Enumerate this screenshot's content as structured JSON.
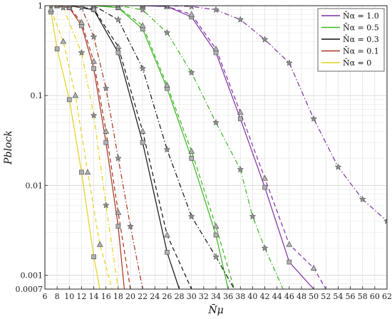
{
  "chart_data": {
    "type": "line",
    "xlabel": "N̄μ",
    "ylabel": "Pblock",
    "xlim": [
      6,
      62
    ],
    "ylim": [
      0.0007,
      1
    ],
    "yscale": "log",
    "grid": true,
    "legend_position": "top-right",
    "x_ticks": [
      6,
      8,
      10,
      12,
      14,
      16,
      18,
      20,
      22,
      24,
      26,
      28,
      30,
      32,
      34,
      36,
      38,
      40,
      42,
      44,
      46,
      48,
      50,
      52,
      54,
      56,
      58,
      60,
      62
    ],
    "x_tick_labels": [
      "6",
      "8",
      "10",
      "12",
      "14",
      "16",
      "18",
      "20",
      "22",
      "24",
      "26",
      "28",
      "30",
      "32",
      "34",
      "36",
      "38",
      "40",
      "42",
      "44",
      "46",
      "48",
      "50",
      "52",
      "54",
      "56",
      "58",
      "60",
      "62"
    ],
    "y_ticks": [
      0.0007,
      0.001,
      0.01,
      0.1,
      1
    ],
    "y_tick_labels": [
      "0.0007",
      "0.001",
      "0.01",
      "0.1",
      "1"
    ],
    "legend": [
      {
        "label": "N̄α = 1.0",
        "color": "#7d2fa3"
      },
      {
        "label": "N̄α = 0.5",
        "color": "#3cb521"
      },
      {
        "label": "N̄α = 0.3",
        "color": "#111111"
      },
      {
        "label": "N̄α = 0.1",
        "color": "#a8321c"
      },
      {
        "label": "N̄α = 0",
        "color": "#e6d21a"
      }
    ],
    "series": [
      {
        "group": "1.0",
        "style": "solid",
        "marker": "square",
        "color": "#7d2fa3",
        "points": [
          [
            22,
            1
          ],
          [
            26,
            0.98
          ],
          [
            30,
            0.75
          ],
          [
            34,
            0.3
          ],
          [
            38,
            0.055
          ],
          [
            42,
            0.0095
          ],
          [
            46,
            0.0014
          ],
          [
            50,
            0.0007
          ]
        ]
      },
      {
        "group": "1.0",
        "style": "dashed",
        "marker": "triangle",
        "color": "#7d2fa3",
        "points": [
          [
            22,
            1
          ],
          [
            26,
            0.98
          ],
          [
            30,
            0.8
          ],
          [
            34,
            0.33
          ],
          [
            38,
            0.065
          ],
          [
            42,
            0.012
          ],
          [
            46,
            0.0022
          ],
          [
            50,
            0.0012
          ],
          [
            52,
            0.0007
          ]
        ]
      },
      {
        "group": "1.0",
        "style": "dashdot",
        "marker": "star",
        "color": "#7d2fa3",
        "points": [
          [
            22,
            1
          ],
          [
            26,
            1
          ],
          [
            30,
            0.98
          ],
          [
            34,
            0.9
          ],
          [
            38,
            0.7
          ],
          [
            42,
            0.42
          ],
          [
            46,
            0.23
          ],
          [
            50,
            0.055
          ],
          [
            54,
            0.016
          ],
          [
            58,
            0.007
          ],
          [
            62,
            0.004
          ]
        ]
      },
      {
        "group": "0.5",
        "style": "solid",
        "marker": "square",
        "color": "#3cb521",
        "points": [
          [
            14,
            1
          ],
          [
            18,
            0.95
          ],
          [
            22,
            0.55
          ],
          [
            26,
            0.12
          ],
          [
            30,
            0.02
          ],
          [
            34,
            0.0028
          ],
          [
            36,
            0.0007
          ]
        ]
      },
      {
        "group": "0.5",
        "style": "dashed",
        "marker": "triangle",
        "color": "#3cb521",
        "points": [
          [
            14,
            1
          ],
          [
            18,
            0.96
          ],
          [
            22,
            0.6
          ],
          [
            26,
            0.13
          ],
          [
            30,
            0.024
          ],
          [
            34,
            0.0035
          ],
          [
            37,
            0.0007
          ]
        ]
      },
      {
        "group": "0.5",
        "style": "dashdot",
        "marker": "star",
        "color": "#3cb521",
        "points": [
          [
            14,
            1
          ],
          [
            18,
            1
          ],
          [
            22,
            0.9
          ],
          [
            26,
            0.5
          ],
          [
            30,
            0.18
          ],
          [
            34,
            0.05
          ],
          [
            38,
            0.015
          ],
          [
            40,
            0.0045
          ],
          [
            42,
            0.002
          ],
          [
            45,
            0.0007
          ]
        ]
      },
      {
        "group": "0.3",
        "style": "solid",
        "marker": "square",
        "color": "#111111",
        "points": [
          [
            10,
            1
          ],
          [
            14,
            0.9
          ],
          [
            18,
            0.3
          ],
          [
            22,
            0.03
          ],
          [
            26,
            0.0018
          ],
          [
            28,
            0.0007
          ]
        ]
      },
      {
        "group": "0.3",
        "style": "dashed",
        "marker": "triangle",
        "color": "#111111",
        "points": [
          [
            10,
            1
          ],
          [
            14,
            0.92
          ],
          [
            18,
            0.35
          ],
          [
            22,
            0.04
          ],
          [
            26,
            0.0028
          ],
          [
            30,
            0.0007
          ]
        ]
      },
      {
        "group": "0.3",
        "style": "dashdot",
        "marker": "star",
        "color": "#111111",
        "points": [
          [
            10,
            1
          ],
          [
            14,
            1
          ],
          [
            18,
            0.7
          ],
          [
            22,
            0.2
          ],
          [
            26,
            0.025
          ],
          [
            30,
            0.0045
          ],
          [
            34,
            0.0016
          ],
          [
            37,
            0.0007
          ]
        ]
      },
      {
        "group": "0.1",
        "style": "solid",
        "marker": "square",
        "color": "#a8321c",
        "points": [
          [
            8,
            1
          ],
          [
            10,
            0.95
          ],
          [
            12,
            0.6
          ],
          [
            14,
            0.2
          ],
          [
            16,
            0.03
          ],
          [
            18,
            0.0035
          ],
          [
            19,
            0.0007
          ]
        ]
      },
      {
        "group": "0.1",
        "style": "dashed",
        "marker": "triangle",
        "color": "#a8321c",
        "points": [
          [
            8,
            1
          ],
          [
            10,
            0.96
          ],
          [
            12,
            0.65
          ],
          [
            14,
            0.24
          ],
          [
            16,
            0.04
          ],
          [
            18,
            0.005
          ],
          [
            20,
            0.0007
          ]
        ]
      },
      {
        "group": "0.1",
        "style": "dashdot",
        "marker": "star",
        "color": "#a8321c",
        "points": [
          [
            8,
            1
          ],
          [
            10,
            1
          ],
          [
            12,
            0.95
          ],
          [
            14,
            0.45
          ],
          [
            16,
            0.12
          ],
          [
            18,
            0.02
          ],
          [
            20,
            0.0035
          ],
          [
            22,
            0.0007
          ]
        ]
      },
      {
        "group": "0",
        "style": "solid",
        "marker": "square",
        "color": "#e6d21a",
        "points": [
          [
            7,
            0.85
          ],
          [
            8,
            0.33
          ],
          [
            10,
            0.09
          ],
          [
            12,
            0.014
          ],
          [
            14,
            0.0016
          ],
          [
            15,
            0.0007
          ]
        ]
      },
      {
        "group": "0",
        "style": "dashed",
        "marker": "triangle",
        "color": "#e6d21a",
        "points": [
          [
            7,
            0.9
          ],
          [
            9,
            0.4
          ],
          [
            11,
            0.1
          ],
          [
            13,
            0.014
          ],
          [
            15,
            0.0022
          ],
          [
            17,
            0.0007
          ]
        ]
      },
      {
        "group": "0",
        "style": "dashdot",
        "marker": "star",
        "color": "#e6d21a",
        "points": [
          [
            7,
            1
          ],
          [
            9,
            0.95
          ],
          [
            12,
            0.3
          ],
          [
            14,
            0.06
          ],
          [
            16,
            0.006
          ],
          [
            18,
            0.0007
          ]
        ]
      }
    ]
  }
}
